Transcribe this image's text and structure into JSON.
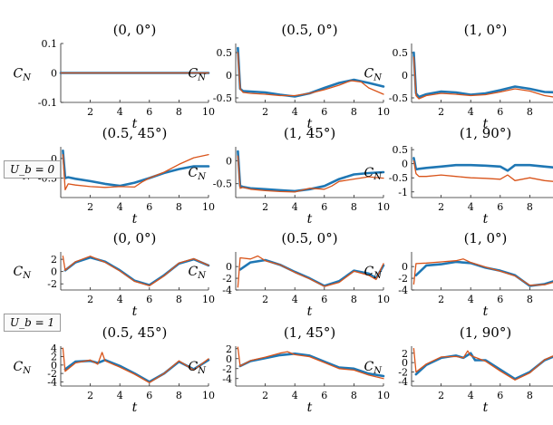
{
  "groups": [
    {
      "label": "U_b = 0"
    },
    {
      "label": "U_b = 1"
    }
  ],
  "colors": {
    "blue": "#1f77b4",
    "orange": "#d9541a"
  },
  "chart_data": [
    {
      "type": "line",
      "title": "(0, 0°)",
      "xlabel": "t",
      "ylabel": "C_N",
      "xlim": [
        0,
        10
      ],
      "ylim": [
        -0.1,
        0.1
      ],
      "yticks": [
        0.1,
        0,
        -0.1
      ],
      "ytick_labels": [
        "0.1",
        "0",
        "-0.1"
      ],
      "xticks": [
        2,
        4,
        6,
        8,
        10
      ],
      "series": [
        {
          "color": "#1f77b4",
          "x": [
            0,
            10
          ],
          "y": [
            0,
            0
          ]
        },
        {
          "color": "#d9541a",
          "x": [
            0,
            10
          ],
          "y": [
            0,
            0
          ]
        }
      ]
    },
    {
      "type": "line",
      "title": "(0.5, 0°)",
      "xlabel": "t",
      "ylabel": "C_N",
      "xlim": [
        0,
        10
      ],
      "ylim": [
        -0.6,
        0.7
      ],
      "yticks": [
        0.5,
        0,
        -0.5
      ],
      "ytick_labels": [
        "0.5",
        "0",
        "-0.5"
      ],
      "xticks": [
        2,
        4,
        6,
        8,
        10
      ],
      "series": [
        {
          "color": "#1f77b4",
          "x": [
            0.15,
            0.3,
            0.5,
            1,
            2,
            3,
            4,
            5,
            6,
            7,
            8,
            9,
            10
          ],
          "y": [
            0.6,
            -0.3,
            -0.35,
            -0.36,
            -0.38,
            -0.43,
            -0.47,
            -0.4,
            -0.28,
            -0.17,
            -0.1,
            -0.17,
            -0.25
          ]
        },
        {
          "color": "#d9541a",
          "x": [
            0.15,
            0.3,
            0.5,
            1,
            2,
            3,
            4,
            5,
            6,
            7,
            7.8,
            8.5,
            9,
            10
          ],
          "y": [
            0.5,
            -0.3,
            -0.38,
            -0.4,
            -0.42,
            -0.45,
            -0.45,
            -0.4,
            -0.32,
            -0.22,
            -0.12,
            -0.15,
            -0.28,
            -0.42
          ]
        }
      ]
    },
    {
      "type": "line",
      "title": "(1, 0°)",
      "xlabel": "t",
      "ylabel": "C_N",
      "xlim": [
        0,
        10
      ],
      "ylim": [
        -0.6,
        0.7
      ],
      "yticks": [
        0.5,
        0,
        -0.5
      ],
      "ytick_labels": [
        "0.5",
        "0",
        "-0.5"
      ],
      "xticks": [
        2,
        4,
        6,
        8,
        10
      ],
      "series": [
        {
          "color": "#1f77b4",
          "x": [
            0.15,
            0.3,
            0.5,
            1,
            2,
            3,
            4,
            5,
            6,
            7,
            8,
            9,
            10
          ],
          "y": [
            0.5,
            -0.4,
            -0.48,
            -0.42,
            -0.36,
            -0.38,
            -0.43,
            -0.4,
            -0.33,
            -0.25,
            -0.3,
            -0.37,
            -0.38
          ]
        },
        {
          "color": "#d9541a",
          "x": [
            0.15,
            0.3,
            0.5,
            1,
            2,
            3,
            4,
            5,
            6,
            7,
            8,
            9,
            10
          ],
          "y": [
            0.4,
            -0.45,
            -0.52,
            -0.45,
            -0.4,
            -0.42,
            -0.45,
            -0.43,
            -0.37,
            -0.3,
            -0.35,
            -0.45,
            -0.5
          ]
        }
      ]
    },
    {
      "type": "line",
      "title": "(0.5, 45°)",
      "xlabel": "t",
      "ylabel": "C_N",
      "xlim": [
        0,
        10
      ],
      "ylim": [
        -1.0,
        0.3
      ],
      "yticks": [
        0,
        -0.5
      ],
      "ytick_labels": [
        "0",
        "-0.5"
      ],
      "xticks": [
        2,
        4,
        6,
        8,
        10
      ],
      "series": [
        {
          "color": "#1f77b4",
          "x": [
            0.15,
            0.3,
            0.5,
            1,
            2,
            3,
            4,
            5,
            6,
            7,
            8,
            9,
            10
          ],
          "y": [
            0.2,
            -0.5,
            -0.48,
            -0.52,
            -0.58,
            -0.65,
            -0.7,
            -0.62,
            -0.5,
            -0.37,
            -0.27,
            -0.2,
            -0.2
          ]
        },
        {
          "color": "#d9541a",
          "x": [
            0.15,
            0.3,
            0.5,
            1,
            2,
            3,
            4,
            5,
            5.5,
            6,
            7,
            8,
            9,
            10
          ],
          "y": [
            0.1,
            -0.8,
            -0.65,
            -0.68,
            -0.72,
            -0.74,
            -0.72,
            -0.73,
            -0.6,
            -0.5,
            -0.35,
            -0.15,
            0.02,
            0.1
          ]
        }
      ]
    },
    {
      "type": "line",
      "title": "(1, 45°)",
      "xlabel": "t",
      "ylabel": "C_N",
      "xlim": [
        0,
        10
      ],
      "ylim": [
        -0.8,
        0.3
      ],
      "yticks": [
        0,
        -0.5
      ],
      "ytick_labels": [
        "0",
        "-0.5"
      ],
      "xticks": [
        2,
        4,
        6,
        8,
        10
      ],
      "series": [
        {
          "color": "#1f77b4",
          "x": [
            0.15,
            0.3,
            0.5,
            1,
            2,
            3,
            4,
            5,
            6,
            7,
            8,
            9,
            10
          ],
          "y": [
            0.2,
            -0.55,
            -0.57,
            -0.6,
            -0.62,
            -0.64,
            -0.66,
            -0.62,
            -0.55,
            -0.4,
            -0.3,
            -0.27,
            -0.25
          ]
        },
        {
          "color": "#d9541a",
          "x": [
            0.15,
            0.3,
            0.5,
            1,
            2,
            3,
            4,
            5,
            6,
            6.5,
            7,
            8,
            9,
            10
          ],
          "y": [
            0.1,
            -0.6,
            -0.58,
            -0.62,
            -0.65,
            -0.67,
            -0.68,
            -0.6,
            -0.62,
            -0.55,
            -0.45,
            -0.4,
            -0.35,
            -0.38
          ]
        }
      ]
    },
    {
      "type": "line",
      "title": "(1, 90°)",
      "xlabel": "t",
      "ylabel": "C_N",
      "xlim": [
        0,
        10
      ],
      "ylim": [
        -1.2,
        0.6
      ],
      "yticks": [
        0.5,
        0,
        -0.5,
        -1
      ],
      "ytick_labels": [
        "0.5",
        "0",
        "-0.5",
        "-1"
      ],
      "xticks": [
        2,
        4,
        6,
        8,
        10
      ],
      "series": [
        {
          "color": "#1f77b4",
          "x": [
            0.15,
            0.3,
            0.5,
            1,
            2,
            3,
            4,
            5,
            6,
            6.5,
            7,
            8,
            9,
            10
          ],
          "y": [
            0.2,
            -0.2,
            -0.18,
            -0.15,
            -0.1,
            -0.05,
            -0.05,
            -0.07,
            -0.1,
            -0.25,
            -0.05,
            -0.05,
            -0.1,
            -0.15
          ]
        },
        {
          "color": "#d9541a",
          "x": [
            0.15,
            0.3,
            0.5,
            1,
            2,
            3,
            4,
            5,
            6,
            6.5,
            7,
            8,
            9,
            10
          ],
          "y": [
            0.1,
            -0.35,
            -0.45,
            -0.45,
            -0.4,
            -0.45,
            -0.5,
            -0.52,
            -0.55,
            -0.4,
            -0.6,
            -0.5,
            -0.6,
            -0.65
          ]
        }
      ]
    },
    {
      "type": "line",
      "title": "(0, 0°)",
      "xlabel": "t",
      "ylabel": "C_N",
      "xlim": [
        0,
        10
      ],
      "ylim": [
        -3,
        3.2
      ],
      "yticks": [
        2,
        0,
        -2
      ],
      "ytick_labels": [
        "2",
        "0",
        "-2"
      ],
      "xticks": [
        2,
        4,
        6,
        8,
        10
      ],
      "series": [
        {
          "color": "#1f77b4",
          "x": [
            0.3,
            1,
            2,
            3,
            4,
            5,
            6,
            7,
            8,
            9,
            10
          ],
          "y": [
            0.2,
            1.5,
            2.3,
            1.6,
            0.2,
            -1.5,
            -2.2,
            -0.6,
            1.3,
            2.0,
            1.0
          ]
        },
        {
          "color": "#d9541a",
          "x": [
            0.15,
            0.3,
            1,
            2,
            3,
            4,
            5,
            6,
            7,
            8,
            9,
            10
          ],
          "y": [
            2.5,
            0.2,
            1.6,
            2.5,
            1.5,
            0.1,
            -1.6,
            -2.3,
            -0.7,
            1.4,
            2.1,
            1.0
          ]
        }
      ]
    },
    {
      "type": "line",
      "title": "(0.5, 0°)",
      "xlabel": "t",
      "ylabel": "C_N",
      "xlim": [
        0,
        10
      ],
      "ylim": [
        -4,
        2.5
      ],
      "yticks": [
        0,
        -2,
        -4
      ],
      "ytick_labels": [
        "0",
        "-2",
        "-4"
      ],
      "xticks": [
        2,
        4,
        6,
        8,
        10
      ],
      "series": [
        {
          "color": "#1f77b4",
          "x": [
            0.3,
            1,
            2,
            3,
            4,
            5,
            6,
            7,
            8,
            9,
            9.5,
            10
          ],
          "y": [
            -0.5,
            0.7,
            1.1,
            0.3,
            -0.9,
            -2.0,
            -3.3,
            -2.5,
            -0.7,
            -1.2,
            -2.0,
            0.2
          ]
        },
        {
          "color": "#d9541a",
          "x": [
            0.15,
            0.3,
            1,
            1.5,
            2,
            3,
            4,
            5,
            6,
            7,
            8,
            9,
            9.5,
            10
          ],
          "y": [
            -3.5,
            1.5,
            1.3,
            1.8,
            1.0,
            0.3,
            -1.0,
            -2.1,
            -3.4,
            -2.7,
            -0.8,
            -1.5,
            -2.2,
            0.5
          ]
        }
      ]
    },
    {
      "type": "line",
      "title": "(1, 0°)",
      "xlabel": "t",
      "ylabel": "C_N",
      "xlim": [
        0,
        10
      ],
      "ylim": [
        -4,
        2.5
      ],
      "yticks": [
        0,
        -2,
        -4
      ],
      "ytick_labels": [
        "0",
        "-2",
        "-4"
      ],
      "xticks": [
        2,
        4,
        6,
        8,
        10
      ],
      "series": [
        {
          "color": "#1f77b4",
          "x": [
            0.3,
            1,
            2,
            3,
            4,
            5,
            6,
            7,
            8,
            9,
            10
          ],
          "y": [
            -1.5,
            0.2,
            0.4,
            0.8,
            0.6,
            -0.2,
            -0.7,
            -1.5,
            -3.3,
            -3.0,
            -2.2
          ]
        },
        {
          "color": "#d9541a",
          "x": [
            0.15,
            0.3,
            1,
            2,
            3,
            3.5,
            4,
            5,
            6,
            7,
            8,
            9,
            10
          ],
          "y": [
            -3.0,
            0.5,
            0.6,
            0.8,
            1.0,
            1.3,
            0.7,
            -0.1,
            -0.8,
            -1.6,
            -3.2,
            -3.1,
            -2.4
          ]
        }
      ]
    },
    {
      "type": "line",
      "title": "(0.5, 45°)",
      "xlabel": "t",
      "ylabel": "C_N",
      "xlim": [
        0,
        10
      ],
      "ylim": [
        -5,
        4.5
      ],
      "yticks": [
        4,
        2,
        0,
        -2,
        -4
      ],
      "ytick_labels": [
        "4",
        "2",
        "0",
        "-2",
        "-4"
      ],
      "xticks": [
        2,
        4,
        6,
        8,
        10
      ],
      "series": [
        {
          "color": "#1f77b4",
          "x": [
            0.3,
            1,
            2,
            2.5,
            3,
            4,
            5,
            6,
            7,
            8,
            9,
            10
          ],
          "y": [
            -1.0,
            0.8,
            1.0,
            0.5,
            1.2,
            -0.2,
            -2.0,
            -4.0,
            -2.0,
            0.8,
            -1.0,
            1.2
          ]
        },
        {
          "color": "#d9541a",
          "x": [
            0.15,
            0.3,
            1,
            2,
            2.5,
            2.8,
            3,
            4,
            5,
            6,
            7,
            8,
            9,
            10
          ],
          "y": [
            4.0,
            -1.5,
            0.5,
            1.2,
            0.2,
            3.0,
            1.0,
            -0.5,
            -2.2,
            -4.2,
            -2.0,
            1.0,
            -1.2,
            1.5
          ]
        }
      ]
    },
    {
      "type": "line",
      "title": "(1, 45°)",
      "xlabel": "t",
      "ylabel": "C_N",
      "xlim": [
        0,
        10
      ],
      "ylim": [
        -5.5,
        2.5
      ],
      "yticks": [
        2,
        0,
        -2,
        -4
      ],
      "ytick_labels": [
        "2",
        "0",
        "-2",
        "-4"
      ],
      "xticks": [
        2,
        4,
        6,
        8,
        10
      ],
      "series": [
        {
          "color": "#1f77b4",
          "x": [
            0.3,
            1,
            2,
            3,
            4,
            5,
            6,
            7,
            8,
            9,
            10
          ],
          "y": [
            -1.5,
            -0.5,
            0.1,
            0.7,
            1.0,
            0.6,
            -0.6,
            -1.8,
            -2.0,
            -3.0,
            -3.5
          ]
        },
        {
          "color": "#d9541a",
          "x": [
            0.15,
            0.3,
            1,
            2,
            3,
            3.5,
            4,
            5,
            6,
            7,
            8,
            9,
            10
          ],
          "y": [
            2.3,
            -1.5,
            -0.4,
            0.3,
            1.1,
            1.4,
            0.8,
            0.4,
            -0.8,
            -2.0,
            -2.3,
            -3.3,
            -4.0
          ]
        }
      ]
    },
    {
      "type": "line",
      "title": "(1, 90°)",
      "xlabel": "t",
      "ylabel": "C_N",
      "xlim": [
        0,
        10
      ],
      "ylim": [
        -5,
        3.5
      ],
      "yticks": [
        2,
        0,
        -2,
        -4
      ],
      "ytick_labels": [
        "2",
        "0",
        "-2",
        "-4"
      ],
      "xticks": [
        2,
        4,
        6,
        8,
        10
      ],
      "series": [
        {
          "color": "#1f77b4",
          "x": [
            0.3,
            1,
            2,
            3,
            3.5,
            4,
            4.3,
            5,
            6,
            7,
            8,
            9,
            10
          ],
          "y": [
            -2.5,
            -0.5,
            1.0,
            1.5,
            1.0,
            2.0,
            0.5,
            0.5,
            -1.5,
            -3.5,
            -2.0,
            0.5,
            1.8
          ]
        },
        {
          "color": "#d9541a",
          "x": [
            0.15,
            0.3,
            1,
            2,
            3,
            3.5,
            3.8,
            4,
            5,
            6,
            7,
            8,
            9,
            10
          ],
          "y": [
            3.0,
            -2.0,
            -0.3,
            1.2,
            1.3,
            1.0,
            2.5,
            1.5,
            0.3,
            -1.8,
            -3.7,
            -2.2,
            0.6,
            2.0
          ]
        }
      ]
    }
  ]
}
